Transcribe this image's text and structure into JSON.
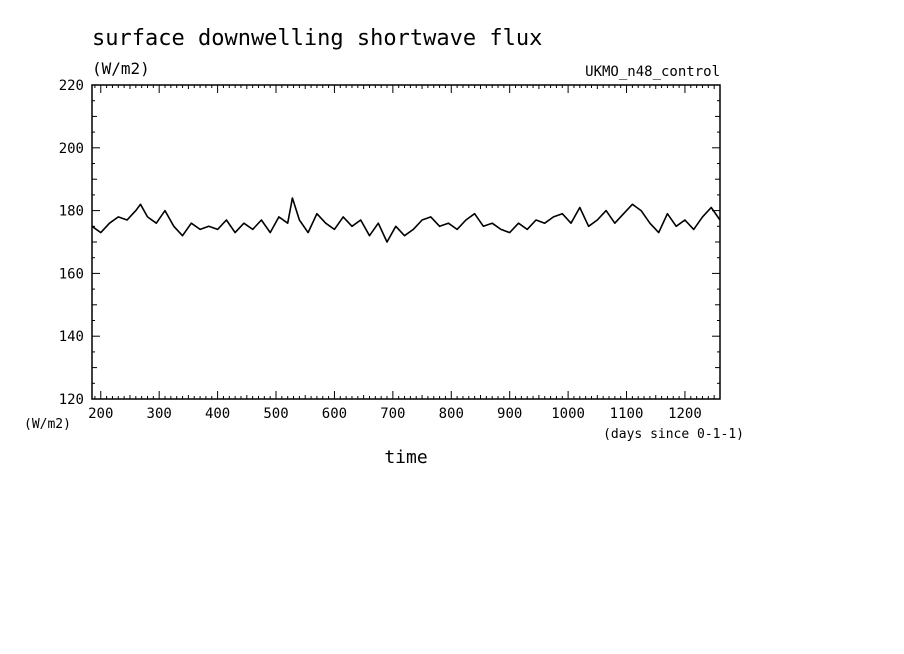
{
  "chart_data": {
    "type": "line",
    "title": "surface downwelling shortwave flux",
    "units_label": "(W/m2)",
    "model_label": "UKMO_n48_control",
    "xlabel": "time",
    "x_units": "(days since 0-1-1)",
    "y_units_corner": "(W/m2)",
    "xlim": [
      185,
      1260
    ],
    "ylim": [
      120,
      220
    ],
    "x_ticks": [
      200,
      300,
      400,
      500,
      600,
      700,
      800,
      900,
      1000,
      1100,
      1200
    ],
    "y_ticks": [
      120,
      140,
      160,
      180,
      200,
      220
    ],
    "grid": false,
    "series": [
      {
        "x": [
          185,
          200,
          215,
          230,
          245,
          260,
          268,
          280,
          295,
          310,
          325,
          340,
          355,
          370,
          385,
          400,
          415,
          430,
          445,
          460,
          475,
          490,
          505,
          520,
          528,
          540,
          555,
          570,
          585,
          600,
          615,
          630,
          645,
          660,
          675,
          690,
          705,
          720,
          735,
          750,
          765,
          780,
          795,
          810,
          825,
          840,
          855,
          870,
          885,
          900,
          915,
          930,
          945,
          960,
          975,
          990,
          1005,
          1020,
          1035,
          1050,
          1065,
          1080,
          1095,
          1110,
          1125,
          1140,
          1155,
          1170,
          1185,
          1200,
          1215,
          1230,
          1245,
          1260
        ],
        "y": [
          175,
          173,
          176,
          178,
          177,
          180,
          182,
          178,
          176,
          180,
          175,
          172,
          176,
          174,
          175,
          174,
          177,
          173,
          176,
          174,
          177,
          173,
          178,
          176,
          184,
          177,
          173,
          179,
          176,
          174,
          178,
          175,
          177,
          172,
          176,
          170,
          175,
          172,
          174,
          177,
          178,
          175,
          176,
          174,
          177,
          179,
          175,
          176,
          174,
          173,
          176,
          174,
          177,
          176,
          178,
          179,
          176,
          181,
          175,
          177,
          180,
          176,
          179,
          182,
          180,
          176,
          173,
          179,
          175,
          177,
          174,
          178,
          181,
          177
        ]
      }
    ]
  }
}
